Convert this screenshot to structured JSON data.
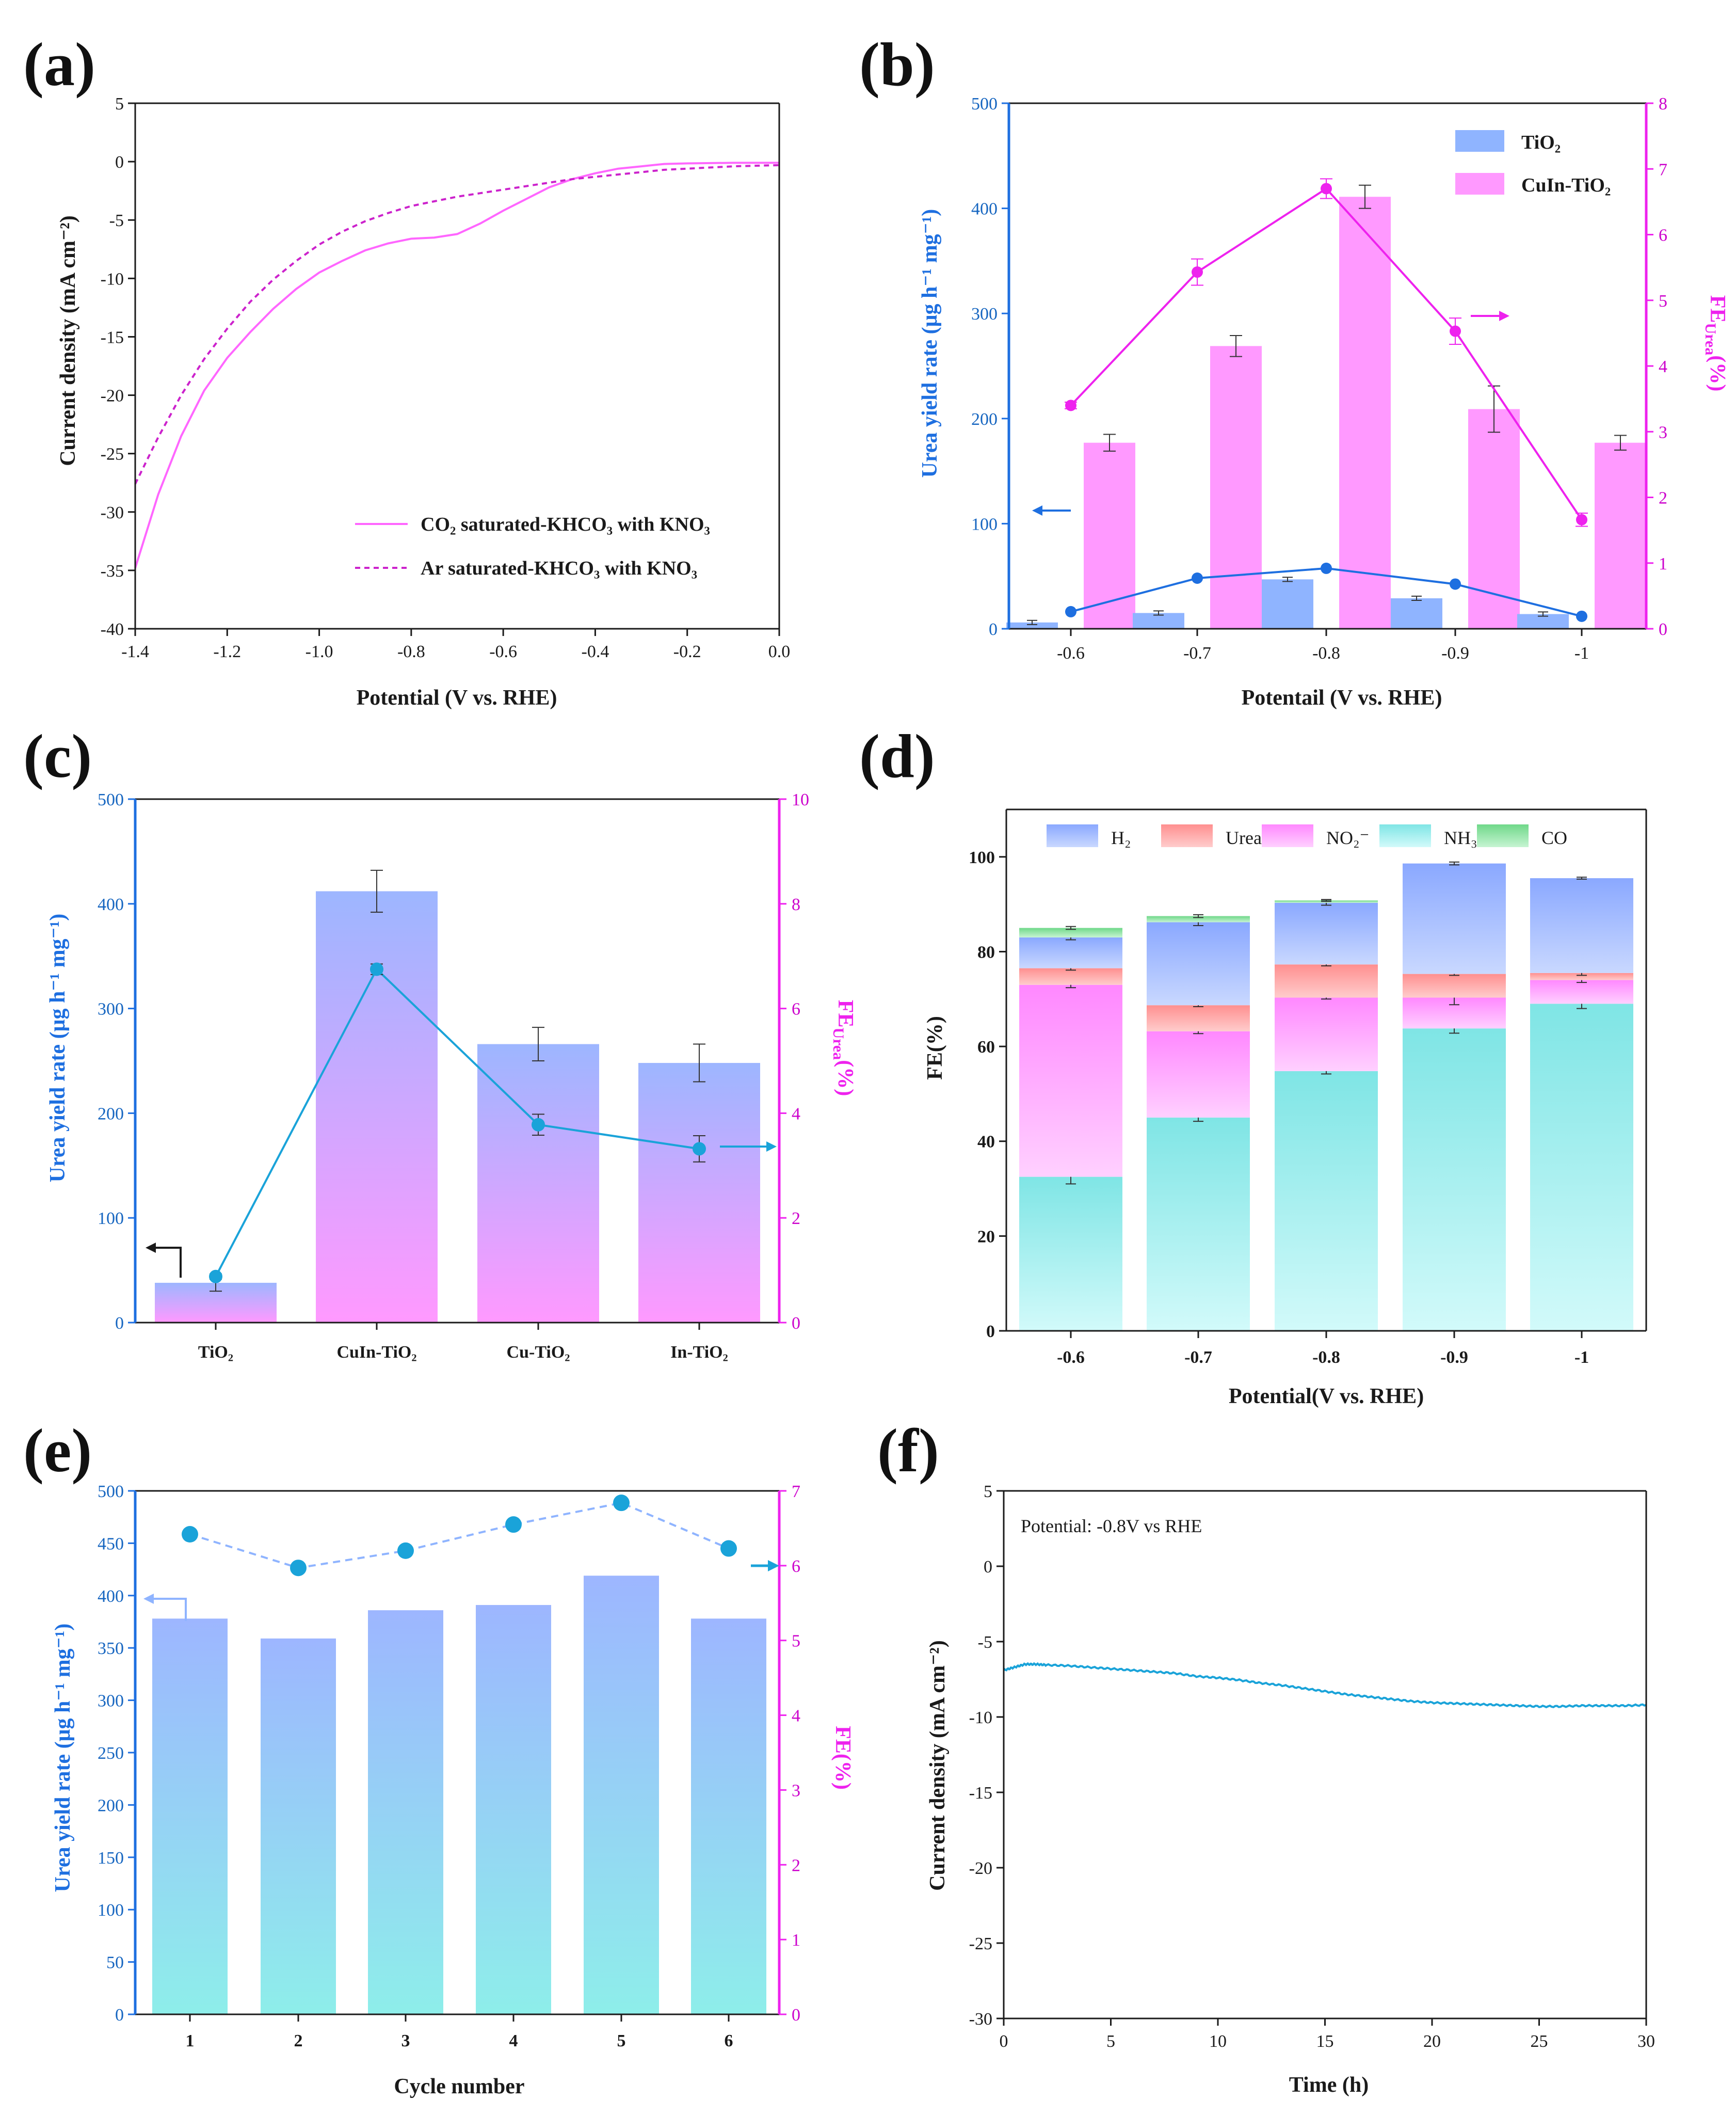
{
  "chart_data": [
    {
      "panel": "(a)",
      "type": "line",
      "xlabel": "Potential (V vs. RHE)",
      "ylabel": "Current density (mA cm⁻²)",
      "xlim": [
        -1.4,
        0.0
      ],
      "ylim": [
        -40,
        5
      ],
      "xticks": [
        "-1.4",
        "-1.2",
        "-1.0",
        "-0.8",
        "-0.6",
        "-0.4",
        "-0.2",
        "0.0"
      ],
      "yticks": [
        "5",
        "0",
        "-5",
        "-10",
        "-15",
        "-20",
        "-25",
        "-30",
        "-35",
        "-40"
      ],
      "color": "#ff66ff",
      "series": [
        {
          "name": "CO₂ saturated-KHCO₃ with KNO₃",
          "style": "solid",
          "x": [
            -1.4,
            -1.35,
            -1.3,
            -1.25,
            -1.2,
            -1.15,
            -1.1,
            -1.05,
            -1.0,
            -0.95,
            -0.9,
            -0.85,
            -0.8,
            -0.75,
            -0.7,
            -0.65,
            -0.6,
            -0.55,
            -0.5,
            -0.45,
            -0.4,
            -0.35,
            -0.3,
            -0.25,
            -0.2,
            -0.1,
            0.0
          ],
          "y": [
            -34.8,
            -28.5,
            -23.5,
            -19.6,
            -16.8,
            -14.6,
            -12.6,
            -10.9,
            -9.5,
            -8.5,
            -7.6,
            -7.0,
            -6.6,
            -6.5,
            -6.2,
            -5.3,
            -4.2,
            -3.2,
            -2.2,
            -1.5,
            -1.0,
            -0.6,
            -0.4,
            -0.2,
            -0.15,
            -0.1,
            -0.1
          ]
        },
        {
          "name": "Ar saturated-KHCO₃ with KNO₃",
          "style": "dashed",
          "x": [
            -1.4,
            -1.35,
            -1.3,
            -1.25,
            -1.2,
            -1.15,
            -1.1,
            -1.05,
            -1.0,
            -0.95,
            -0.9,
            -0.85,
            -0.8,
            -0.75,
            -0.7,
            -0.65,
            -0.6,
            -0.55,
            -0.5,
            -0.45,
            -0.4,
            -0.35,
            -0.3,
            -0.25,
            -0.2,
            -0.1,
            0.0
          ],
          "y": [
            -27.6,
            -23.6,
            -20.0,
            -16.9,
            -14.3,
            -12.0,
            -10.1,
            -8.5,
            -7.1,
            -6.0,
            -5.1,
            -4.4,
            -3.8,
            -3.4,
            -3.0,
            -2.7,
            -2.4,
            -2.1,
            -1.8,
            -1.5,
            -1.3,
            -1.1,
            -0.9,
            -0.7,
            -0.6,
            -0.4,
            -0.3
          ]
        }
      ]
    },
    {
      "panel": "(b)",
      "type": "bar",
      "xlabel": "Potentail (V vs. RHE)",
      "ylabel_left": "Urea yield rate (μg h⁻¹ mg⁻¹)",
      "ylabel_right": "FE",
      "ylabel_right_sub": "Urea",
      "ylabel_right_suffix": "(%)",
      "ylim_left": [
        0,
        500
      ],
      "ylim_right": [
        0,
        8
      ],
      "categories": [
        "-0.6",
        "-0.7",
        "-0.8",
        "-0.9",
        "-1"
      ],
      "yticks_left": [
        "0",
        "100",
        "200",
        "300",
        "400",
        "500"
      ],
      "yticks_right": [
        "0",
        "1",
        "2",
        "3",
        "4",
        "5",
        "6",
        "7",
        "8"
      ],
      "series": [
        {
          "name": "TiO₂",
          "type": "bar",
          "axis": "left",
          "values": [
            6,
            15,
            47,
            29,
            14
          ],
          "errors": [
            2,
            2,
            2,
            2,
            2
          ],
          "color": "#8fb4ff"
        },
        {
          "name": "CuIn-TiO₂",
          "type": "bar",
          "axis": "left",
          "values": [
            177,
            269,
            411,
            209,
            177
          ],
          "errors": [
            8,
            10,
            11,
            22,
            7
          ],
          "color": "#ff99ff"
        },
        {
          "name": "FE TiO₂",
          "type": "line",
          "axis": "right",
          "values": [
            0.26,
            0.77,
            0.92,
            0.68,
            0.19
          ],
          "color": "#1e6fe0"
        },
        {
          "name": "FE CuIn-TiO₂",
          "type": "line",
          "axis": "right",
          "values": [
            3.4,
            5.43,
            6.7,
            4.53,
            1.66
          ],
          "errors": [
            0.05,
            0.2,
            0.15,
            0.2,
            0.1
          ],
          "color": "#ee22ee"
        }
      ],
      "legend": [
        "TiO₂",
        "CuIn-TiO₂"
      ]
    },
    {
      "panel": "(c)",
      "type": "bar",
      "ylabel_left": "Urea yield rate (μg h⁻¹ mg⁻¹)",
      "ylabel_right": "FE",
      "ylabel_right_sub": "Urea",
      "ylabel_right_suffix": "(%)",
      "ylim_left": [
        0,
        500
      ],
      "ylim_right": [
        0,
        10
      ],
      "categories": [
        "TiO₂",
        "CuIn-TiO₂",
        "Cu-TiO₂",
        "In-TiO₂"
      ],
      "yticks_left": [
        "0",
        "100",
        "200",
        "300",
        "400",
        "500"
      ],
      "yticks_right": [
        "0",
        "2",
        "4",
        "6",
        "8",
        "10"
      ],
      "series": [
        {
          "name": "Urea yield rate",
          "type": "bar",
          "axis": "left",
          "values": [
            38,
            412,
            266,
            248
          ],
          "errors": [
            8,
            20,
            16,
            18
          ]
        },
        {
          "name": "FE Urea",
          "type": "line",
          "axis": "right",
          "values": [
            0.88,
            6.75,
            3.78,
            3.32
          ],
          "errors": [
            0.05,
            0.1,
            0.2,
            0.25
          ],
          "color": "#1aa3d9"
        }
      ]
    },
    {
      "panel": "(d)",
      "type": "bar",
      "stacked": true,
      "xlabel": "Potential(V vs. RHE)",
      "ylabel": "FE(%)",
      "ylim": [
        0,
        110
      ],
      "categories": [
        "-0.6",
        "-0.7",
        "-0.8",
        "-0.9",
        "-1"
      ],
      "yticks": [
        "0",
        "20",
        "40",
        "60",
        "80",
        "100"
      ],
      "series": [
        {
          "name": "NH₃",
          "values": [
            32.5,
            45.0,
            54.8,
            63.8,
            69.0
          ],
          "errors": [
            1.5,
            0.8,
            0.6,
            1.0,
            1.0
          ],
          "color": "#8fe8e8"
        },
        {
          "name": "NO₂⁻",
          "values": [
            40.5,
            18.2,
            15.5,
            6.5,
            5.0
          ],
          "errors": [
            0.6,
            0.5,
            0.3,
            1.5,
            0.5
          ],
          "color": "#ff99ff"
        },
        {
          "name": "Urea",
          "values": [
            3.5,
            5.5,
            7.0,
            5.0,
            1.5
          ],
          "errors": [
            0.4,
            0.3,
            0.3,
            0.3,
            0.5
          ],
          "color": "#ff9999"
        },
        {
          "name": "H₂",
          "values": [
            6.5,
            17.5,
            13.0,
            23.3,
            20.0
          ],
          "errors": [
            0.5,
            0.7,
            0.5,
            0.3,
            0.2
          ],
          "color": "#99b8ff"
        },
        {
          "name": "CO",
          "values": [
            2.0,
            1.3,
            0.5,
            0.0,
            0.0
          ],
          "errors": [
            0.3,
            0.3,
            0.2,
            0,
            0
          ],
          "color": "#88e0a0"
        }
      ],
      "legend": [
        "H₂",
        "Urea",
        "NO₂⁻",
        "NH₃",
        "CO"
      ]
    },
    {
      "panel": "(e)",
      "type": "bar",
      "xlabel": "Cycle number",
      "ylabel_left": "Urea yield rate (μg h⁻¹ mg⁻¹)",
      "ylabel_right": "FE(%)",
      "ylim_left": [
        0,
        500
      ],
      "ylim_right": [
        0,
        7
      ],
      "categories": [
        "1",
        "2",
        "3",
        "4",
        "5",
        "6"
      ],
      "yticks_left": [
        "0",
        "50",
        "100",
        "150",
        "200",
        "250",
        "300",
        "350",
        "400",
        "450",
        "500"
      ],
      "yticks_right": [
        "0",
        "1",
        "2",
        "3",
        "4",
        "5",
        "6",
        "7"
      ],
      "series": [
        {
          "name": "Urea yield rate",
          "type": "bar",
          "axis": "left",
          "values": [
            378,
            359,
            386,
            391,
            419,
            378
          ]
        },
        {
          "name": "FE",
          "type": "line",
          "axis": "right",
          "values": [
            6.42,
            5.97,
            6.2,
            6.55,
            6.84,
            6.23
          ],
          "color": "#1aa3d9"
        }
      ]
    },
    {
      "panel": "(f)",
      "type": "line",
      "xlabel": "Time (h)",
      "ylabel": "Current density (mA cm⁻²)",
      "xlim": [
        0,
        30
      ],
      "ylim": [
        -30,
        5
      ],
      "xticks": [
        "0",
        "5",
        "10",
        "15",
        "20",
        "25",
        "30"
      ],
      "yticks": [
        "5",
        "0",
        "-5",
        "-10",
        "-15",
        "-20",
        "-25",
        "-30"
      ],
      "annotation": "Potential: -0.8V vs RHE",
      "series": [
        {
          "name": "i-t",
          "color": "#1aa3d9",
          "x": [
            0,
            0.5,
            1,
            1.5,
            2,
            3,
            4,
            5,
            6,
            7,
            8,
            9,
            10,
            11,
            12,
            13,
            14,
            15,
            16,
            17,
            18,
            19,
            20,
            21,
            22,
            23,
            24,
            25,
            26,
            27,
            28,
            29,
            30
          ],
          "y": [
            -6.9,
            -6.7,
            -6.5,
            -6.5,
            -6.55,
            -6.6,
            -6.7,
            -6.8,
            -6.9,
            -7.0,
            -7.1,
            -7.3,
            -7.4,
            -7.55,
            -7.75,
            -7.9,
            -8.1,
            -8.3,
            -8.5,
            -8.65,
            -8.8,
            -8.95,
            -9.05,
            -9.1,
            -9.15,
            -9.2,
            -9.25,
            -9.3,
            -9.3,
            -9.25,
            -9.25,
            -9.25,
            -9.2
          ]
        }
      ]
    }
  ]
}
